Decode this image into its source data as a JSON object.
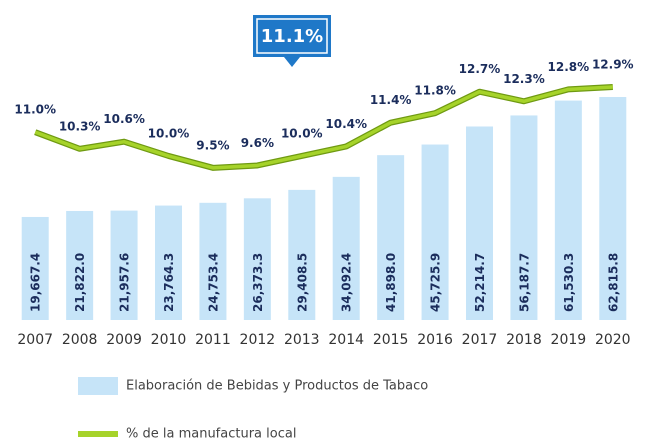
{
  "chart_data": {
    "type": "bar",
    "annotation": "11.1%",
    "categories": [
      "2007",
      "2008",
      "2009",
      "2010",
      "2011",
      "2012",
      "2013",
      "2014",
      "2015",
      "2016",
      "2017",
      "2018",
      "2019",
      "2020"
    ],
    "series": [
      {
        "name": "Elaboración de Bebidas y Productos de Tabaco",
        "color": "#c6e4f8",
        "values": [
          19667.4,
          21822.0,
          21957.6,
          23764.3,
          24753.4,
          26373.3,
          29408.5,
          34092.4,
          41898.0,
          45725.9,
          52214.7,
          56187.7,
          61530.3,
          62815.8
        ],
        "value_labels": [
          "19,667.4",
          "21,822.0",
          "21,957.6",
          "23,764.3",
          "24,753.4",
          "26,373.3",
          "29,408.5",
          "34,092.4",
          "41,898.0",
          "45,725.9",
          "52,214.7",
          "56,187.7",
          "61,530.3",
          "62,815.8"
        ]
      },
      {
        "name": "% de la manufactura local",
        "color": "#a6d32a",
        "type": "line",
        "axis": "y2",
        "values": [
          11.0,
          10.3,
          10.6,
          10.0,
          9.5,
          9.6,
          10.0,
          10.4,
          11.4,
          11.8,
          12.7,
          12.3,
          12.8,
          12.9
        ],
        "value_labels": [
          "11.0%",
          "10.3%",
          "10.6%",
          "10.0%",
          "9.5%",
          "9.6%",
          "10.0%",
          "10.4%",
          "11.4%",
          "11.8%",
          "12.7%",
          "12.3%",
          "12.8%",
          "12.9%"
        ]
      }
    ],
    "ylim": [
      -17400,
      63000
    ],
    "y2lim": [
      3.1,
      12.5
    ]
  }
}
